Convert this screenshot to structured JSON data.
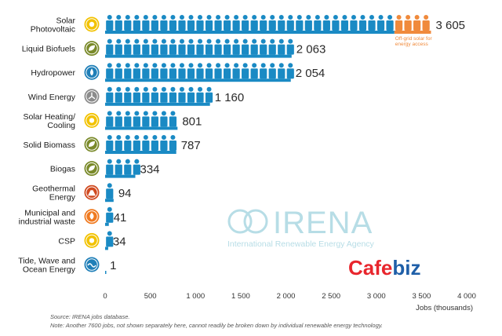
{
  "chart_data": {
    "type": "bar",
    "orientation": "horizontal",
    "categories": [
      "Solar Photovoltaic",
      "Liquid Biofuels",
      "Hydropower",
      "Wind Energy",
      "Solar Heating/ Cooling",
      "Solid Biomass",
      "Biogas",
      "Geothermal Energy",
      "Municipal and industrial waste",
      "CSP",
      "Tide, Wave and Ocean Energy"
    ],
    "category_lines": [
      [
        "Solar",
        "Photovoltaic"
      ],
      [
        "Liquid Biofuels"
      ],
      [
        "Hydropower"
      ],
      [
        "Wind Energy"
      ],
      [
        "Solar Heating/",
        "Cooling"
      ],
      [
        "Solid Biomass"
      ],
      [
        "Biogas"
      ],
      [
        "Geothermal",
        "Energy"
      ],
      [
        "Municipal and",
        "industrial waste"
      ],
      [
        "CSP"
      ],
      [
        "Tide, Wave and",
        "Ocean Energy"
      ]
    ],
    "values": [
      3605,
      2063,
      2054,
      1160,
      801,
      787,
      334,
      94,
      41,
      34,
      1
    ],
    "value_labels": [
      "3 605",
      "2 063",
      "2 054",
      "1 160",
      "801",
      "787",
      "334",
      "94",
      "41",
      "34",
      "1"
    ],
    "highlight": {
      "category": "Solar Photovoltaic",
      "from": 3200,
      "to": 3605,
      "label_lines": [
        "Off-grid solar for",
        "energy access"
      ],
      "color": "#f08a3c"
    },
    "bar_color": "#1a8ac4",
    "xlim": [
      0,
      4000
    ],
    "xticks": [
      0,
      500,
      1000,
      1500,
      2000,
      2500,
      3000,
      3500,
      4000
    ],
    "xtick_labels": [
      "0",
      "500",
      "1 000",
      "1 500",
      "2 000",
      "2 500",
      "3 000",
      "3 500",
      "4 000"
    ],
    "xlabel": "Jobs (thousands)",
    "icon_names": [
      "sun-icon",
      "leaf-drop-icon",
      "water-drop-icon",
      "wind-turbine-icon",
      "sun-icon",
      "leaf-icon",
      "leaf-icon",
      "volcano-icon",
      "flame-icon",
      "sun-icon",
      "wave-icon"
    ],
    "icon_colors": [
      "#f2c200",
      "#7a8a2a",
      "#1f7fb8",
      "#8c8c8c",
      "#f2c200",
      "#7a8a2a",
      "#7a8a2a",
      "#d04a20",
      "#f07a20",
      "#f2c200",
      "#1f7fb8"
    ]
  },
  "watermark": {
    "brand": "IRENA",
    "subtitle": "International Renewable Energy Agency"
  },
  "publisher_logo": {
    "text_red": "Cafe",
    "text_blue": "biz",
    "red": "#e8262d",
    "blue": "#1f5fa8"
  },
  "notes": {
    "source": "Source: IRENA jobs database.",
    "note": "Note: Another 7600 jobs, not shown separately here, cannot readily be broken down by individual renewable energy technology."
  }
}
